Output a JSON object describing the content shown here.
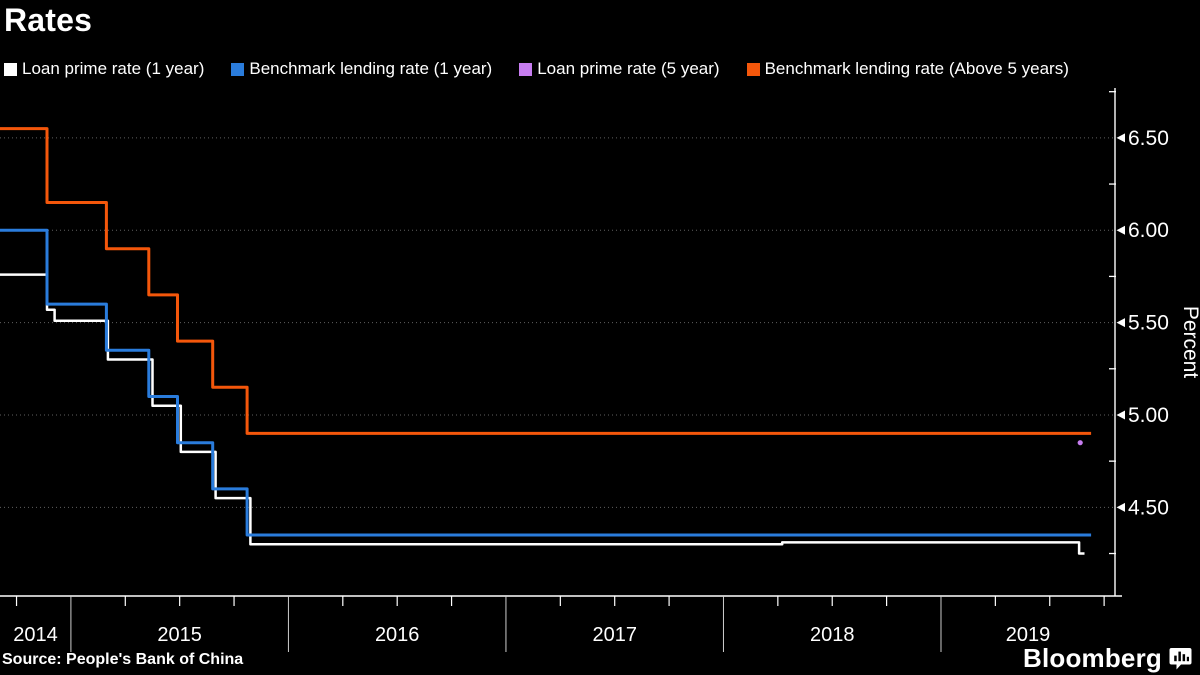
{
  "title": "Rates",
  "source": "Source: People's Bank of China",
  "branding": {
    "wordmark": "Bloomberg",
    "icon": "bloomberg-chart-bubble-icon"
  },
  "colors": {
    "background": "#000000",
    "text": "#ffffff",
    "axis": "#ffffff",
    "gridline": "#606060",
    "white_series": "#ffffff",
    "blue_series": "#2a7cdc",
    "purple_series": "#c77df0",
    "orange_series": "#f4570b"
  },
  "legend": {
    "items": [
      {
        "label": "Loan prime rate (1 year)",
        "color": "#ffffff"
      },
      {
        "label": "Benchmark lending rate (1 year)",
        "color": "#2a7cdc"
      },
      {
        "label": "Loan prime rate (5 year)",
        "color": "#c77df0"
      },
      {
        "label": "Benchmark lending rate (Above 5 years)",
        "color": "#f4570b"
      }
    ]
  },
  "chart_data": {
    "type": "line",
    "line_style": "step-after",
    "title": "Rates",
    "xlabel": "",
    "ylabel": "Percent",
    "xlim": [
      2014.674,
      2019.8
    ],
    "ylim": [
      4.02,
      6.77
    ],
    "yticks_major": [
      4.5,
      5.0,
      5.5,
      6.0,
      6.5
    ],
    "ytick_labels": [
      "4.50",
      "5.00",
      "5.50",
      "6.00",
      "6.50"
    ],
    "yticks_minor": [
      4.25,
      4.75,
      5.25,
      5.75,
      6.25,
      6.75
    ],
    "x_year_labels": [
      "2014",
      "2015",
      "2016",
      "2017",
      "2018",
      "2019"
    ],
    "x_year_boundaries": [
      2015,
      2016,
      2017,
      2018,
      2019
    ],
    "x_quarter_tick_step": 0.25,
    "grid": "horizontal dashed at major y ticks",
    "legend_position": "top",
    "series": [
      {
        "name": "Loan prime rate (1 year)",
        "color": "#ffffff",
        "width": 2.5,
        "draw": "step",
        "points": [
          [
            2014.674,
            5.76
          ],
          [
            2014.89,
            5.57
          ],
          [
            2014.925,
            5.51
          ],
          [
            2015.17,
            5.3
          ],
          [
            2015.375,
            5.05
          ],
          [
            2015.505,
            4.8
          ],
          [
            2015.665,
            4.55
          ],
          [
            2015.825,
            4.3
          ],
          [
            2018.27,
            4.31
          ],
          [
            2019.635,
            4.25
          ],
          [
            2019.66,
            4.25
          ]
        ]
      },
      {
        "name": "Benchmark lending rate (1 year)",
        "color": "#2a7cdc",
        "width": 3,
        "draw": "step",
        "points": [
          [
            2014.674,
            6.0
          ],
          [
            2014.89,
            5.6
          ],
          [
            2015.163,
            5.35
          ],
          [
            2015.358,
            5.1
          ],
          [
            2015.49,
            4.85
          ],
          [
            2015.652,
            4.6
          ],
          [
            2015.81,
            4.35
          ],
          [
            2019.69,
            4.35
          ]
        ]
      },
      {
        "name": "Loan prime rate (5 year)",
        "color": "#c77df0",
        "width": 2.5,
        "draw": "point",
        "points": [
          [
            2019.64,
            4.85
          ]
        ]
      },
      {
        "name": "Benchmark lending rate (Above 5 years)",
        "color": "#f4570b",
        "width": 3,
        "draw": "step",
        "points": [
          [
            2014.674,
            6.55
          ],
          [
            2014.89,
            6.15
          ],
          [
            2015.163,
            5.9
          ],
          [
            2015.358,
            5.65
          ],
          [
            2015.49,
            5.4
          ],
          [
            2015.652,
            5.15
          ],
          [
            2015.81,
            4.9
          ],
          [
            2019.69,
            4.9
          ]
        ]
      }
    ]
  }
}
